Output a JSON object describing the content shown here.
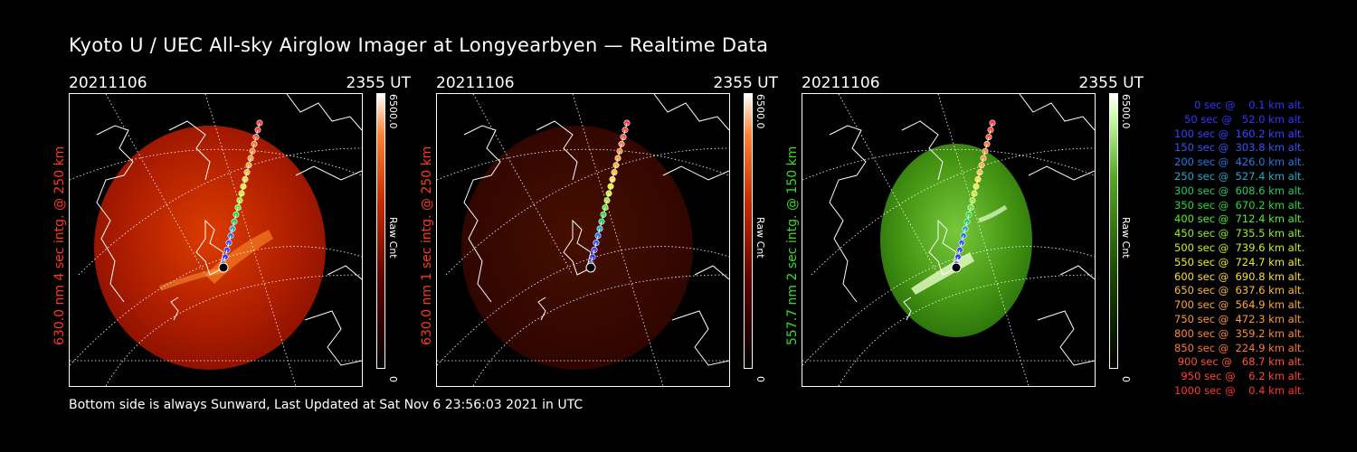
{
  "title": "Kyoto U / UEC All-sky Airglow Imager at Longyearbyen — Realtime Data",
  "footer": "Bottom side is always Sunward, Last Updated at Sat Nov  6 23:56:03 2021 in UTC",
  "panels": [
    {
      "date": "20211106",
      "time": "2355 UT",
      "ylabel": "630.0 nm 4 sec intg. @ 250 km",
      "label_color": "#ff3a1a",
      "cbar_max": "6500.0",
      "cbar_unit": "Raw Cnt",
      "cbar_min": "0",
      "palette": "red",
      "intensity": 1.0
    },
    {
      "date": "20211106",
      "time": "2355 UT",
      "ylabel": "630.0 nm 1 sec intg. @ 250 km",
      "label_color": "#ff3a1a",
      "cbar_max": "6500.0",
      "cbar_unit": "Raw Cnt",
      "cbar_min": "0",
      "palette": "red",
      "intensity": 0.25
    },
    {
      "date": "20211106",
      "time": "2355 UT",
      "ylabel": "557.7 nm 2 sec intg. @ 150 km",
      "label_color": "#33dd22",
      "cbar_max": "6500.0",
      "cbar_unit": "Raw Cnt",
      "cbar_min": "0",
      "palette": "green",
      "intensity": 1.0
    }
  ],
  "legend": [
    {
      "text": "0 sec @    0.1 km alt.",
      "color": "#3333ff"
    },
    {
      "text": "50 sec @   52.0 km alt.",
      "color": "#3333ff"
    },
    {
      "text": "100 sec @  160.2 km alt.",
      "color": "#3344ff"
    },
    {
      "text": "150 sec @  303.8 km alt.",
      "color": "#3355ff"
    },
    {
      "text": "200 sec @  426.0 km alt.",
      "color": "#2277ee"
    },
    {
      "text": "250 sec @  527.4 km alt.",
      "color": "#22aacc"
    },
    {
      "text": "300 sec @  608.6 km alt.",
      "color": "#22cc66"
    },
    {
      "text": "350 sec @  670.2 km alt.",
      "color": "#22dd33"
    },
    {
      "text": "400 sec @  712.4 km alt.",
      "color": "#55ee22"
    },
    {
      "text": "450 sec @  735.5 km alt.",
      "color": "#99ee22"
    },
    {
      "text": "500 sec @  739.6 km alt.",
      "color": "#ccee22"
    },
    {
      "text": "550 sec @  724.7 km alt.",
      "color": "#eeee22"
    },
    {
      "text": "600 sec @  690.8 km alt.",
      "color": "#ffdd33"
    },
    {
      "text": "650 sec @  637.6 km alt.",
      "color": "#ffbb33"
    },
    {
      "text": "700 sec @  564.9 km alt.",
      "color": "#ffaa33"
    },
    {
      "text": "750 sec @  472.3 km alt.",
      "color": "#ff9933"
    },
    {
      "text": "800 sec @  359.2 km alt.",
      "color": "#ff8833"
    },
    {
      "text": "850 sec @  224.9 km alt.",
      "color": "#ff7733"
    },
    {
      "text": "900 sec @   68.7 km alt.",
      "color": "#ff5533"
    },
    {
      "text": "950 sec @    6.2 km alt.",
      "color": "#ff4433"
    },
    {
      "text": "1000 sec @    0.4 km alt.",
      "color": "#ff3333"
    }
  ]
}
